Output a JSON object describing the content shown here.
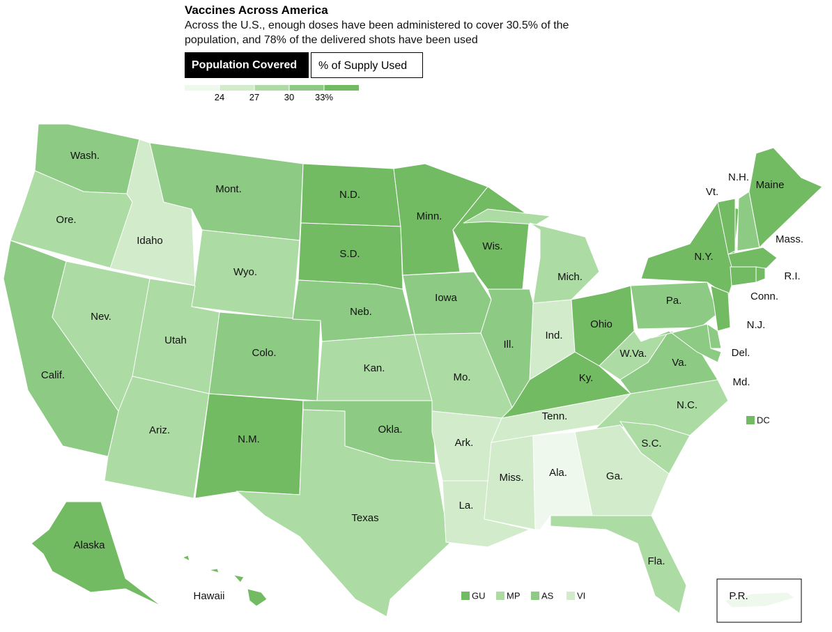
{
  "header": {
    "title": "Vaccines Across America",
    "subtitle": "Across the U.S., enough doses have been administered to cover 30.5% of the population, and 78% of the delivered shots have been used"
  },
  "tabs": [
    {
      "label": "Population Covered",
      "selected": true
    },
    {
      "label": "% of Supply Used",
      "selected": false
    }
  ],
  "legend": {
    "lim": [
      21,
      36
    ],
    "ticks": [
      24,
      27,
      30,
      {
        "value": 33,
        "label": "33%"
      }
    ],
    "colors": [
      "#eef8ec",
      "#d1ebcb",
      "#acdca4",
      "#8dcb84",
      "#72bb63"
    ]
  },
  "states": [
    {
      "label": "Wash.",
      "color": "#8dcb84"
    },
    {
      "label": "Ore.",
      "color": "#acdca4"
    },
    {
      "label": "Idaho",
      "color": "#d1ebcb"
    },
    {
      "label": "Mont.",
      "color": "#8dcb84"
    },
    {
      "label": "Wyo.",
      "color": "#acdca4"
    },
    {
      "label": "Calif.",
      "color": "#8dcb84"
    },
    {
      "label": "Nev.",
      "color": "#acdca4"
    },
    {
      "label": "Utah",
      "color": "#acdca4"
    },
    {
      "label": "Colo.",
      "color": "#8dcb84"
    },
    {
      "label": "Ariz.",
      "color": "#acdca4"
    },
    {
      "label": "N.M.",
      "color": "#72bb63"
    },
    {
      "label": "N.D.",
      "color": "#72bb63"
    },
    {
      "label": "S.D.",
      "color": "#72bb63"
    },
    {
      "label": "Neb.",
      "color": "#8dcb84"
    },
    {
      "label": "Kan.",
      "color": "#acdca4"
    },
    {
      "label": "Okla.",
      "color": "#8dcb84"
    },
    {
      "label": "Texas",
      "color": "#acdca4"
    },
    {
      "label": "Minn.",
      "color": "#72bb63"
    },
    {
      "label": "Iowa",
      "color": "#8dcb84"
    },
    {
      "label": "Mo.",
      "color": "#acdca4"
    },
    {
      "label": "Ark.",
      "color": "#d1ebcb"
    },
    {
      "label": "La.",
      "color": "#d1ebcb"
    },
    {
      "label": "Miss.",
      "color": "#d1ebcb"
    },
    {
      "label": "Ala.",
      "color": "#eef8ec"
    },
    {
      "label": "Tenn.",
      "color": "#d1ebcb"
    },
    {
      "label": "Ky.",
      "color": "#72bb63"
    },
    {
      "label": "Ind.",
      "color": "#d1ebcb"
    },
    {
      "label": "Ill.",
      "color": "#8dcb84"
    },
    {
      "label": "Wis.",
      "color": "#72bb63"
    },
    {
      "label": "Mich.",
      "color": "#acdca4"
    },
    {
      "label": "Ohio",
      "color": "#72bb63"
    },
    {
      "label": "W.Va.",
      "color": "#acdca4"
    },
    {
      "label": "Va.",
      "color": "#8dcb84"
    },
    {
      "label": "N.C.",
      "color": "#acdca4"
    },
    {
      "label": "S.C.",
      "color": "#acdca4"
    },
    {
      "label": "Ga.",
      "color": "#d1ebcb"
    },
    {
      "label": "Fla.",
      "color": "#acdca4"
    },
    {
      "label": "Pa.",
      "color": "#8dcb84"
    },
    {
      "label": "N.Y.",
      "color": "#72bb63"
    },
    {
      "label": "Vt.",
      "color": "#72bb63"
    },
    {
      "label": "N.H.",
      "color": "#8dcb84"
    },
    {
      "label": "Maine",
      "color": "#72bb63"
    },
    {
      "label": "Mass.",
      "color": "#72bb63"
    },
    {
      "label": "Conn.",
      "color": "#72bb63"
    },
    {
      "label": "R.I.",
      "color": "#72bb63"
    },
    {
      "label": "N.J.",
      "color": "#72bb63"
    },
    {
      "label": "Del.",
      "color": "#8dcb84"
    },
    {
      "label": "Md.",
      "color": "#8dcb84"
    },
    {
      "label": "Alaska",
      "color": "#72bb63"
    },
    {
      "label": "Hawaii",
      "color": "#72bb63"
    },
    {
      "label": "P.R.",
      "color": "#eef8ec"
    }
  ],
  "territories": [
    {
      "label": "DC",
      "color": "#72bb63"
    },
    {
      "label": "GU",
      "color": "#72bb63"
    },
    {
      "label": "MP",
      "color": "#acdca4"
    },
    {
      "label": "AS",
      "color": "#8dcb84"
    },
    {
      "label": "VI",
      "color": "#d1ebcb"
    }
  ]
}
